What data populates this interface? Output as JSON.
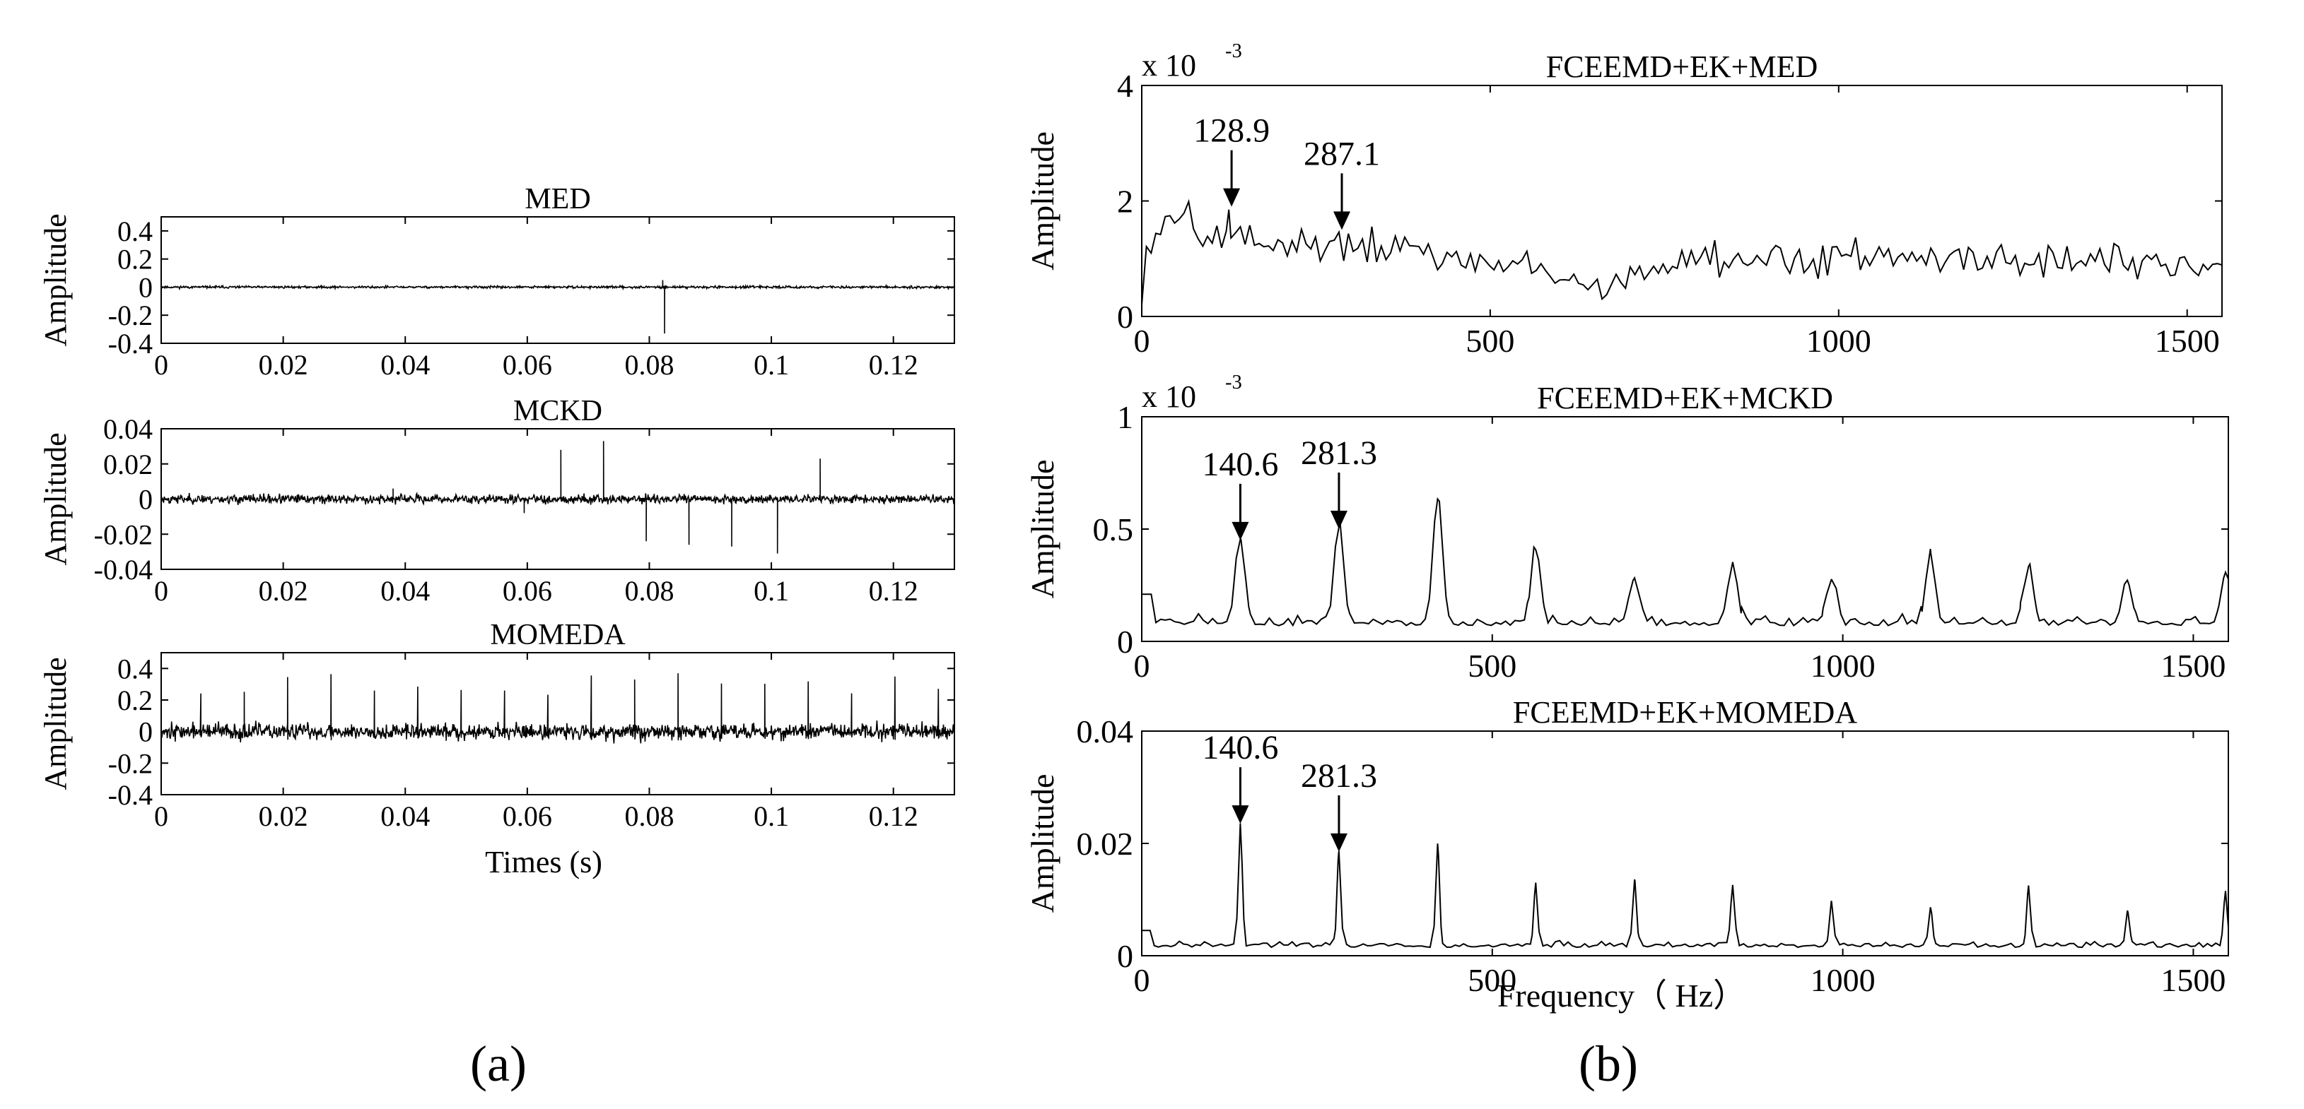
{
  "panel_labels": {
    "a": "(a)",
    "b": "(b)"
  },
  "colors": {
    "trace": "#000000",
    "frame": "#000000",
    "background": "#ffffff"
  },
  "chart_data": [
    {
      "id": "a1",
      "type": "line",
      "title": "MED",
      "xlabel": "",
      "ylabel": "Amplitude",
      "xlim": [
        0,
        0.13
      ],
      "ylim": [
        -0.4,
        0.5
      ],
      "xticks": [
        0,
        0.02,
        0.04,
        0.06,
        0.08,
        0.1,
        0.12
      ],
      "xticklabels": [
        "0",
        "0.02",
        "0.04",
        "0.06",
        "0.08",
        "0.1",
        "0.12"
      ],
      "yticks": [
        -0.4,
        -0.2,
        0,
        0.2,
        0.4
      ],
      "yticklabels": [
        "-0.4",
        "-0.2",
        "0",
        "0.2",
        "0.4"
      ],
      "signal": {
        "kind": "time",
        "n": 1300,
        "noise": 0.008,
        "seed": 11,
        "impulses": [
          [
            0.0825,
            -0.33
          ],
          [
            0.0822,
            0.05
          ]
        ]
      }
    },
    {
      "id": "a2",
      "type": "line",
      "title": "MCKD",
      "xlabel": "",
      "ylabel": "Amplitude",
      "xlim": [
        0,
        0.13
      ],
      "ylim": [
        -0.04,
        0.04
      ],
      "xticks": [
        0,
        0.02,
        0.04,
        0.06,
        0.08,
        0.1,
        0.12
      ],
      "xticklabels": [
        "0",
        "0.02",
        "0.04",
        "0.06",
        "0.08",
        "0.1",
        "0.12"
      ],
      "yticks": [
        -0.04,
        -0.02,
        0,
        0.02,
        0.04
      ],
      "yticklabels": [
        "-0.04",
        "-0.02",
        "0",
        "0.02",
        "0.04"
      ],
      "signal": {
        "kind": "time",
        "n": 1300,
        "noise": 0.0025,
        "seed": 23,
        "impulses": [
          [
            0.0655,
            0.028
          ],
          [
            0.0725,
            0.033
          ],
          [
            0.0795,
            -0.024
          ],
          [
            0.0865,
            -0.026
          ],
          [
            0.0935,
            -0.027
          ],
          [
            0.101,
            -0.031
          ],
          [
            0.108,
            0.023
          ],
          [
            0.0595,
            -0.008
          ],
          [
            0.038,
            0.006
          ]
        ]
      }
    },
    {
      "id": "a3",
      "type": "line",
      "title": "MOMEDA",
      "xlabel": "Times (s)",
      "ylabel": "Amplitude",
      "xlim": [
        0,
        0.13
      ],
      "ylim": [
        -0.4,
        0.5
      ],
      "xticks": [
        0,
        0.02,
        0.04,
        0.06,
        0.08,
        0.1,
        0.12
      ],
      "xticklabels": [
        "0",
        "0.02",
        "0.04",
        "0.06",
        "0.08",
        "0.1",
        "0.12"
      ],
      "yticks": [
        -0.4,
        -0.2,
        0,
        0.2,
        0.4
      ],
      "yticklabels": [
        "-0.4",
        "-0.2",
        "0",
        "0.2",
        "0.4"
      ],
      "signal": {
        "kind": "time",
        "n": 1300,
        "noise": 0.05,
        "seed": 37,
        "period": 0.00711,
        "first": 0.0065,
        "peak": 0.3,
        "peak_jitter": 0.07
      }
    },
    {
      "id": "b1",
      "type": "line",
      "title": "FCEEMD+EK+MED",
      "xlabel": "",
      "ylabel": "Amplitude",
      "scale_label": "x 10",
      "scale_exponent": "-3",
      "xlim": [
        0,
        1550
      ],
      "ylim": [
        0,
        4
      ],
      "xticks": [
        0,
        500,
        1000,
        1500
      ],
      "xticklabels": [
        "0",
        "500",
        "1000",
        "1500"
      ],
      "yticks": [
        0,
        2,
        4
      ],
      "yticklabels": [
        "0",
        "2",
        "4"
      ],
      "annotations": [
        {
          "label": "128.9",
          "x": 128.9,
          "y": 1.9
        },
        {
          "label": "287.1",
          "x": 287.1,
          "y": 1.5
        }
      ],
      "signal": {
        "kind": "spectrum_noisy",
        "n": 230,
        "seed": 5
      }
    },
    {
      "id": "b2",
      "type": "line",
      "title": "FCEEMD+EK+MCKD",
      "xlabel": "",
      "ylabel": "Amplitude",
      "scale_label": "x 10",
      "scale_exponent": "-3",
      "xlim": [
        0,
        1550
      ],
      "ylim": [
        0,
        1
      ],
      "xticks": [
        0,
        500,
        1000,
        1500
      ],
      "xticklabels": [
        "0",
        "500",
        "1000",
        "1500"
      ],
      "yticks": [
        0,
        0.5,
        1
      ],
      "yticklabels": [
        "0",
        "0.5",
        "1"
      ],
      "annotations": [
        {
          "label": "140.6",
          "x": 140.6,
          "y": 0.45
        },
        {
          "label": "281.3",
          "x": 281.3,
          "y": 0.5
        }
      ],
      "signal": {
        "kind": "spectrum_peaks",
        "n": 230,
        "seed": 9,
        "base": 0.07,
        "base_noise": 0.07,
        "width": 12,
        "peaks": [
          [
            140.6,
            0.38
          ],
          [
            281.3,
            0.43
          ],
          [
            422,
            0.56
          ],
          [
            562,
            0.33
          ],
          [
            703,
            0.2
          ],
          [
            843,
            0.27
          ],
          [
            984,
            0.2
          ],
          [
            1125,
            0.3
          ],
          [
            1265,
            0.25
          ],
          [
            1406,
            0.18
          ],
          [
            1546,
            0.22
          ]
        ]
      }
    },
    {
      "id": "b3",
      "type": "line",
      "title": "FCEEMD+EK+MOMEDA",
      "xlabel": "Frequency（ Hz）",
      "ylabel": "Amplitude",
      "xlim": [
        0,
        1550
      ],
      "ylim": [
        0,
        0.04
      ],
      "xticks": [
        0,
        500,
        1000,
        1500
      ],
      "xticklabels": [
        "0",
        "500",
        "1000",
        "1500"
      ],
      "yticks": [
        0,
        0.02,
        0.04
      ],
      "yticklabels": [
        "0",
        "0.02",
        "0.04"
      ],
      "annotations": [
        {
          "label": "140.6",
          "x": 140.6,
          "y": 0.0235
        },
        {
          "label": "281.3",
          "x": 281.3,
          "y": 0.0185
        }
      ],
      "signal": {
        "kind": "spectrum_peaks",
        "n": 260,
        "seed": 17,
        "base": 0.0015,
        "base_noise": 0.0015,
        "width": 5,
        "peaks": [
          [
            140.6,
            0.022
          ],
          [
            281.3,
            0.016
          ],
          [
            422,
            0.018
          ],
          [
            562,
            0.011
          ],
          [
            703,
            0.012
          ],
          [
            843,
            0.011
          ],
          [
            984,
            0.008
          ],
          [
            1125,
            0.007
          ],
          [
            1265,
            0.01
          ],
          [
            1406,
            0.006
          ],
          [
            1546,
            0.01
          ]
        ]
      }
    }
  ]
}
